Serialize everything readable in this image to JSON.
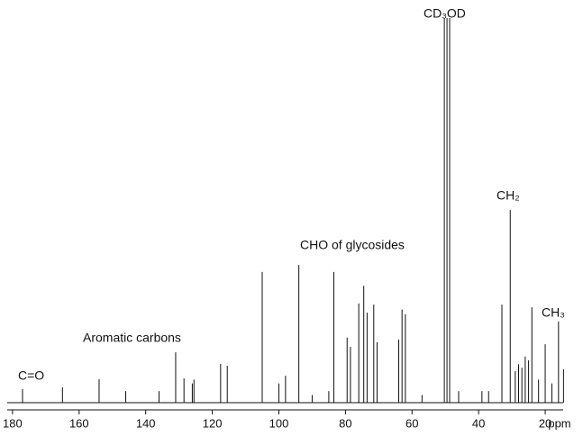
{
  "chart_data": {
    "type": "spectrum",
    "x_label": "ppm",
    "xlim": [
      181.6,
      14.6
    ],
    "ylim": [
      0,
      100
    ],
    "xticks": [
      180,
      160,
      140,
      120,
      100,
      80,
      60,
      40,
      20
    ],
    "color": "#111111",
    "x": [
      177,
      165,
      154,
      146,
      136,
      131,
      128.5,
      126,
      125.5,
      117.5,
      115.5,
      105,
      100,
      98,
      94,
      90,
      85,
      83.5,
      79.5,
      78.5,
      76,
      74.5,
      73.5,
      71.5,
      70.5,
      64,
      63,
      62,
      57,
      50.3,
      49.5,
      48.7,
      46,
      39,
      37,
      33,
      30.5,
      29,
      28,
      27,
      26,
      25,
      24,
      22,
      20,
      18,
      16,
      14.5
    ],
    "values": [
      3.5,
      4,
      6.1,
      3,
      3,
      13.1,
      6.3,
      5,
      6,
      10.1,
      9.6,
      34,
      5,
      7,
      35.8,
      2,
      3,
      34,
      16.9,
      14.5,
      25.8,
      30.4,
      23.4,
      25.5,
      15.7,
      16.4,
      24.2,
      23,
      2,
      100,
      100,
      100,
      3,
      3,
      3,
      25.5,
      50.1,
      8.2,
      10,
      9.1,
      12,
      11,
      24.8,
      6,
      15.2,
      5,
      21.1,
      8.7
    ],
    "annotations": [
      "C=O",
      "Aromatic carbons",
      "CHO of glycosides",
      "CD₃OD",
      "CH₂",
      "CH₃"
    ]
  }
}
